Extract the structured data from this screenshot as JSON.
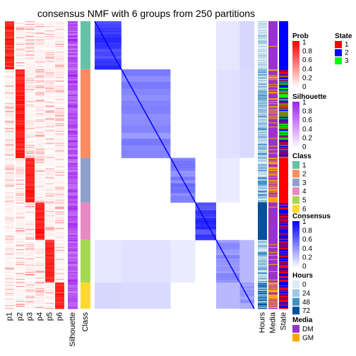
{
  "chart_data": {
    "type": "heatmap",
    "title": "consensus NMF with 6 groups from 250 partitions",
    "prob_columns": [
      "p1",
      "p2",
      "p3",
      "p4",
      "p5",
      "p6"
    ],
    "annotation_columns": [
      "Silhouette",
      "Class"
    ],
    "right_annotation_columns": [
      "Hours",
      "Media",
      "State"
    ],
    "class_groups": [
      {
        "class": "1",
        "color": "#66C2A5",
        "n": 68
      },
      {
        "class": "2",
        "color": "#FC8D62",
        "n": 125
      },
      {
        "class": "3",
        "color": "#8DA0CB",
        "n": 63
      },
      {
        "class": "4",
        "color": "#E78AC3",
        "n": 53
      },
      {
        "class": "5",
        "color": "#A6D854",
        "n": 60
      },
      {
        "class": "6",
        "color": "#FFD92F",
        "n": 37
      }
    ],
    "legends": {
      "prob": {
        "title": "Prob",
        "ticks": [
          "1",
          "0.8",
          "0.6",
          "0.4",
          "0.2",
          "0"
        ]
      },
      "silhouette": {
        "title": "Silhouette",
        "ticks": [
          "1",
          "0.8",
          "0.6",
          "0.4",
          "0.2",
          "0"
        ]
      },
      "class": {
        "title": "Class",
        "items": [
          {
            "label": "1",
            "color": "#66C2A5"
          },
          {
            "label": "2",
            "color": "#FC8D62"
          },
          {
            "label": "3",
            "color": "#8DA0CB"
          },
          {
            "label": "4",
            "color": "#E78AC3"
          },
          {
            "label": "5",
            "color": "#A6D854"
          },
          {
            "label": "6",
            "color": "#FFD92F"
          }
        ]
      },
      "consensus": {
        "title": "Consensus",
        "ticks": [
          "1",
          "0.8",
          "0.6",
          "0.4",
          "0.2",
          "0"
        ]
      },
      "hours": {
        "title": "Hours",
        "items": [
          {
            "label": "0",
            "color": "#DEEBF7"
          },
          {
            "label": "24",
            "color": "#9ECAE1"
          },
          {
            "label": "48",
            "color": "#4292C6"
          },
          {
            "label": "72",
            "color": "#08519C"
          }
        ]
      },
      "media": {
        "title": "Media",
        "items": [
          {
            "label": "DM",
            "color": "#9932CC"
          },
          {
            "label": "GM",
            "color": "#FFA500"
          }
        ]
      },
      "state": {
        "title": "State",
        "items": [
          {
            "label": "1",
            "color": "#FF0000"
          },
          {
            "label": "2",
            "color": "#0000FF"
          },
          {
            "label": "3",
            "color": "#00FF00"
          }
        ]
      }
    }
  }
}
